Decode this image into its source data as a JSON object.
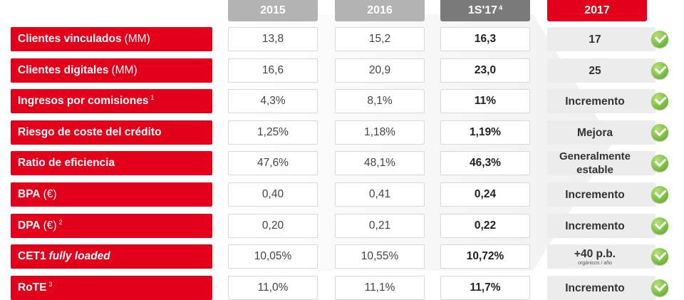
{
  "headers": {
    "y2015": "2015",
    "y2016": "2016",
    "s117": "1S'17",
    "s117_sup": "4",
    "y2017": "2017"
  },
  "rows": [
    {
      "label": "Clientes vinculados",
      "unit": "(MM)",
      "v2015": "13,8",
      "v2016": "15,2",
      "v1s17": "16,3",
      "target": "17"
    },
    {
      "label": "Clientes digitales",
      "unit": "(MM)",
      "v2015": "16,6",
      "v2016": "20,9",
      "v1s17": "23,0",
      "target": "25"
    },
    {
      "label": "Ingresos por comisiones",
      "sup": "1",
      "v2015": "4,3%",
      "v2016": "8,1%",
      "v1s17": "11%",
      "target": "Incremento"
    },
    {
      "label": "Riesgo de coste del crédito",
      "v2015": "1,25%",
      "v2016": "1,18%",
      "v1s17": "1,19%",
      "target": "Mejora"
    },
    {
      "label": "Ratio de eficiencia",
      "v2015": "47,6%",
      "v2016": "48,1%",
      "v1s17": "46,3%",
      "target_line1": "Generalmente",
      "target_line2": "estable"
    },
    {
      "label": "BPA",
      "unit": "(€)",
      "v2015": "0,40",
      "v2016": "0,41",
      "v1s17": "0,24",
      "target": "Incremento"
    },
    {
      "label": "DPA",
      "unit": "(€)",
      "sup": "2",
      "v2015": "0,20",
      "v2016": "0,21",
      "v1s17": "0,22",
      "target": "Incremento"
    },
    {
      "label": "CET1",
      "italic": "fully loaded",
      "v2015": "10,05%",
      "v2016": "10,55%",
      "v1s17": "10,72%",
      "target": "+40 p.b.",
      "target_small": "orgánicos / año"
    },
    {
      "label": "RoTE",
      "sup": "3",
      "v2015": "11,0%",
      "v2016": "11,1%",
      "v1s17": "11,7%",
      "target": "Incremento"
    }
  ],
  "colors": {
    "brand_red": "#e2001a",
    "header_gray": "#b3b3b3",
    "header_dark": "#7a7a7a",
    "check_green": "#7cc242"
  },
  "icons": {
    "status": "check-circle-icon"
  }
}
